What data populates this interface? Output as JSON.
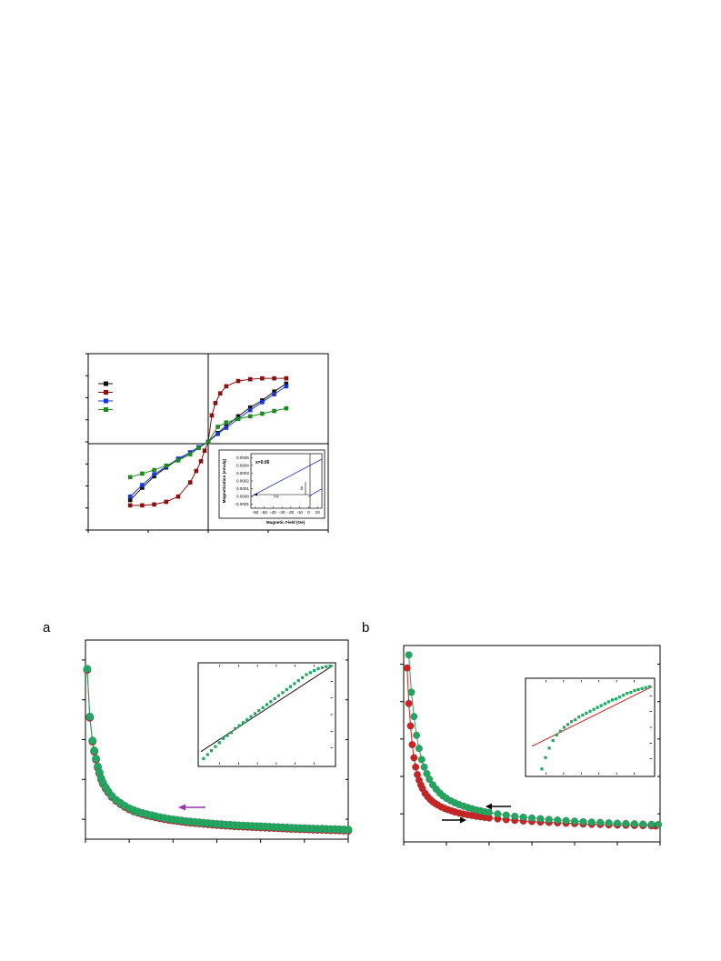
{
  "figure": {
    "panel_a_letter": "a",
    "panel_b_letter": "b"
  },
  "colors": {
    "black": "#111111",
    "dark_red": "#8b1010",
    "blue": "#1a35e0",
    "green": "#1e8a1e",
    "sea_green": "#20a860",
    "red": "#cc2222",
    "purple": "#9933aa",
    "inset_line": "#2233cc"
  },
  "chart_data": [
    {
      "id": "hysteresis",
      "type": "line",
      "series": [
        {
          "key": "black",
          "color": "#111111",
          "x": [
            -0.65,
            -0.55,
            -0.45,
            -0.35,
            -0.25,
            -0.15,
            -0.08,
            0,
            0.08,
            0.15,
            0.25,
            0.35,
            0.45,
            0.55,
            0.65
          ],
          "y": [
            -0.66,
            -0.52,
            -0.39,
            -0.29,
            -0.2,
            -0.12,
            -0.06,
            0,
            0.1,
            0.18,
            0.29,
            0.39,
            0.47,
            0.57,
            0.66
          ]
        },
        {
          "key": "dark_red",
          "color": "#8b1010",
          "x": [
            -0.65,
            -0.55,
            -0.45,
            -0.35,
            -0.25,
            -0.15,
            -0.1,
            -0.06,
            -0.03,
            0,
            0.03,
            0.06,
            0.1,
            0.15,
            0.25,
            0.35,
            0.45,
            0.55,
            0.65
          ],
          "y": [
            -0.72,
            -0.72,
            -0.71,
            -0.68,
            -0.62,
            -0.46,
            -0.33,
            -0.22,
            -0.1,
            0,
            0.3,
            0.44,
            0.55,
            0.63,
            0.69,
            0.71,
            0.72,
            0.72,
            0.72
          ]
        },
        {
          "key": "blue",
          "color": "#1a35e0",
          "x": [
            -0.65,
            -0.55,
            -0.45,
            -0.35,
            -0.25,
            -0.15,
            -0.08,
            0,
            0.08,
            0.15,
            0.25,
            0.35,
            0.45,
            0.55,
            0.65
          ],
          "y": [
            -0.62,
            -0.49,
            -0.37,
            -0.28,
            -0.19,
            -0.12,
            -0.06,
            0,
            0.09,
            0.16,
            0.26,
            0.36,
            0.45,
            0.54,
            0.63
          ]
        },
        {
          "key": "green",
          "color": "#1e8a1e",
          "x": [
            -0.65,
            -0.55,
            -0.45,
            -0.35,
            -0.25,
            -0.15,
            -0.08,
            0,
            0.08,
            0.15,
            0.25,
            0.35,
            0.45,
            0.55,
            0.65
          ],
          "y": [
            -0.4,
            -0.36,
            -0.32,
            -0.27,
            -0.21,
            -0.14,
            -0.07,
            0,
            0.17,
            0.22,
            0.26,
            0.29,
            0.32,
            0.35,
            0.38
          ]
        }
      ],
      "inset": {
        "annotation": "x=0.06",
        "ylabel": "Magnetization (emu/g)",
        "xlabel": "Magnetic Field (Oe)",
        "y_ticks": [
          "0.0005",
          "0.0004",
          "0.0003",
          "0.0002",
          "0.0001",
          "0.0000",
          "-0.0001"
        ],
        "x_ticks": [
          "-60",
          "-50",
          "-40",
          "-30",
          "-20",
          "-10",
          "0",
          "10"
        ],
        "hc_label": "Hc",
        "mr_label": "Mr",
        "xlim": [
          -65,
          15
        ],
        "ylim": [
          -0.00015,
          0.00055
        ],
        "lines": [
          {
            "x": [
              -65,
              15
            ],
            "y": [
              0.0,
              0.00048
            ]
          },
          {
            "x": [
              0,
              15
            ],
            "y": [
              0.0,
              0.0001
            ]
          }
        ]
      }
    },
    {
      "id": "panel_a",
      "type": "scatter",
      "series": [
        {
          "key": "red",
          "color": "#cc2222",
          "x": [
            2,
            5,
            8,
            10,
            12,
            14,
            16,
            18,
            20,
            23,
            26,
            30,
            35,
            40,
            45,
            50,
            55,
            60,
            65,
            70,
            75,
            80,
            85,
            90,
            95,
            100,
            105,
            110,
            115,
            120,
            125,
            130,
            135,
            140,
            145,
            150,
            155,
            160,
            165,
            170,
            175,
            180,
            185,
            190,
            195,
            200,
            205,
            210,
            215,
            220,
            225,
            230,
            235,
            240,
            245,
            250,
            255,
            260,
            265,
            270,
            275,
            280,
            285,
            290,
            295,
            300
          ],
          "y": [
            8.5,
            6.1,
            4.9,
            4.4,
            4.0,
            3.6,
            3.3,
            3.0,
            2.78,
            2.55,
            2.35,
            2.12,
            1.92,
            1.76,
            1.62,
            1.5,
            1.41,
            1.33,
            1.26,
            1.2,
            1.15,
            1.1,
            1.05,
            1.01,
            0.97,
            0.94,
            0.91,
            0.88,
            0.85,
            0.83,
            0.81,
            0.79,
            0.77,
            0.75,
            0.73,
            0.71,
            0.7,
            0.68,
            0.67,
            0.65,
            0.64,
            0.63,
            0.62,
            0.61,
            0.6,
            0.59,
            0.58,
            0.57,
            0.56,
            0.55,
            0.54,
            0.53,
            0.52,
            0.51,
            0.5,
            0.5,
            0.49,
            0.48,
            0.47,
            0.47,
            0.46,
            0.45,
            0.45,
            0.44,
            0.43,
            0.43
          ]
        },
        {
          "key": "green",
          "color": "#20a860",
          "x": [
            2,
            5,
            8,
            10,
            12,
            14,
            16,
            18,
            20,
            23,
            26,
            30,
            35,
            40,
            45,
            50,
            55,
            60,
            65,
            70,
            75,
            80,
            85,
            90,
            95,
            100,
            105,
            110,
            115,
            120,
            125,
            130,
            135,
            140,
            145,
            150,
            155,
            160,
            165,
            170,
            175,
            180,
            185,
            190,
            195,
            200,
            205,
            210,
            215,
            220,
            225,
            230,
            235,
            240,
            245,
            250,
            255,
            260,
            265,
            270,
            275,
            280,
            285,
            290,
            295,
            300
          ],
          "y": [
            8.55,
            6.15,
            4.95,
            4.45,
            4.05,
            3.65,
            3.35,
            3.05,
            2.83,
            2.6,
            2.4,
            2.17,
            1.97,
            1.81,
            1.67,
            1.55,
            1.46,
            1.38,
            1.31,
            1.25,
            1.2,
            1.15,
            1.1,
            1.06,
            1.02,
            0.99,
            0.96,
            0.93,
            0.9,
            0.88,
            0.86,
            0.84,
            0.82,
            0.8,
            0.78,
            0.76,
            0.75,
            0.73,
            0.72,
            0.7,
            0.69,
            0.68,
            0.67,
            0.66,
            0.65,
            0.64,
            0.63,
            0.62,
            0.61,
            0.6,
            0.59,
            0.58,
            0.57,
            0.56,
            0.55,
            0.55,
            0.54,
            0.53,
            0.52,
            0.52,
            0.51,
            0.5,
            0.5,
            0.49,
            0.48,
            0.48
          ]
        }
      ],
      "xlim": [
        0,
        300
      ],
      "ylim": [
        0,
        10
      ],
      "inset": {
        "xlim": [
          0,
          1
        ],
        "ylim": [
          0,
          1
        ],
        "points": [
          [
            0.02,
            0.06
          ],
          [
            0.05,
            0.1
          ],
          [
            0.08,
            0.14
          ],
          [
            0.11,
            0.18
          ],
          [
            0.14,
            0.22
          ],
          [
            0.17,
            0.26
          ],
          [
            0.2,
            0.29
          ],
          [
            0.23,
            0.32
          ],
          [
            0.26,
            0.36
          ],
          [
            0.29,
            0.39
          ],
          [
            0.32,
            0.42
          ],
          [
            0.35,
            0.45
          ],
          [
            0.38,
            0.48
          ],
          [
            0.41,
            0.51
          ],
          [
            0.44,
            0.54
          ],
          [
            0.47,
            0.57
          ],
          [
            0.5,
            0.6
          ],
          [
            0.53,
            0.63
          ],
          [
            0.56,
            0.66
          ],
          [
            0.59,
            0.69
          ],
          [
            0.62,
            0.72
          ],
          [
            0.65,
            0.75
          ],
          [
            0.68,
            0.78
          ],
          [
            0.71,
            0.81
          ],
          [
            0.74,
            0.84
          ],
          [
            0.77,
            0.87
          ],
          [
            0.8,
            0.9
          ],
          [
            0.83,
            0.92
          ],
          [
            0.86,
            0.94
          ],
          [
            0.89,
            0.96
          ],
          [
            0.92,
            0.97
          ],
          [
            0.95,
            0.98
          ],
          [
            0.98,
            0.985
          ]
        ],
        "fit": [
          [
            0.0,
            0.13
          ],
          [
            1.0,
            0.99
          ]
        ]
      }
    },
    {
      "id": "panel_b",
      "type": "scatter",
      "series": [
        {
          "key": "red",
          "color": "#cc2222",
          "x": [
            4,
            6,
            8,
            10,
            12,
            14,
            16,
            18,
            20,
            22,
            25,
            28,
            31,
            34,
            37,
            40,
            44,
            48,
            52,
            56,
            60,
            65,
            70,
            75,
            80,
            85,
            90,
            95,
            100,
            110,
            120,
            130,
            140,
            150,
            160,
            170,
            180,
            190,
            200,
            210,
            220,
            230,
            240,
            250,
            260,
            270,
            280,
            290,
            295
          ],
          "y": [
            9.3,
            7.4,
            6.2,
            5.2,
            4.5,
            4.0,
            3.6,
            3.3,
            3.05,
            2.85,
            2.6,
            2.42,
            2.27,
            2.15,
            2.05,
            1.97,
            1.87,
            1.79,
            1.72,
            1.66,
            1.6,
            1.54,
            1.49,
            1.45,
            1.41,
            1.37,
            1.34,
            1.31,
            1.28,
            1.23,
            1.19,
            1.15,
            1.12,
            1.09,
            1.06,
            1.04,
            1.02,
            1.0,
            0.98,
            0.96,
            0.94,
            0.93,
            0.91,
            0.9,
            0.89,
            0.88,
            0.87,
            0.86,
            0.85
          ]
        },
        {
          "key": "green",
          "color": "#20a860",
          "x": [
            6,
            9,
            12,
            15,
            18,
            21,
            24,
            27,
            30,
            34,
            38,
            42,
            46,
            50,
            55,
            60,
            65,
            70,
            75,
            80,
            85,
            90,
            95,
            100,
            110,
            120,
            130,
            140,
            150,
            160,
            170,
            180,
            190,
            200,
            210,
            220,
            230,
            240,
            250,
            260,
            270,
            280,
            290,
            298
          ],
          "y": [
            10.0,
            8.0,
            6.7,
            5.7,
            5.0,
            4.4,
            4.0,
            3.65,
            3.35,
            3.05,
            2.82,
            2.62,
            2.46,
            2.33,
            2.2,
            2.09,
            1.99,
            1.91,
            1.84,
            1.77,
            1.71,
            1.66,
            1.61,
            1.57,
            1.5,
            1.43,
            1.37,
            1.32,
            1.28,
            1.24,
            1.2,
            1.17,
            1.14,
            1.11,
            1.08,
            1.06,
            1.04,
            1.02,
            1.0,
            0.98,
            0.97,
            0.95,
            0.94,
            0.93
          ]
        }
      ],
      "xlim": [
        0,
        300
      ],
      "ylim": [
        0,
        10.5
      ],
      "inset": {
        "xlim": [
          0,
          1
        ],
        "ylim": [
          0,
          1
        ],
        "points": [
          [
            0.11,
            0.06
          ],
          [
            0.14,
            0.18
          ],
          [
            0.17,
            0.28
          ],
          [
            0.2,
            0.36
          ],
          [
            0.23,
            0.42
          ],
          [
            0.26,
            0.46
          ],
          [
            0.29,
            0.5
          ],
          [
            0.32,
            0.53
          ],
          [
            0.35,
            0.56
          ],
          [
            0.38,
            0.58
          ],
          [
            0.41,
            0.61
          ],
          [
            0.44,
            0.63
          ],
          [
            0.47,
            0.65
          ],
          [
            0.5,
            0.67
          ],
          [
            0.53,
            0.69
          ],
          [
            0.56,
            0.71
          ],
          [
            0.59,
            0.73
          ],
          [
            0.62,
            0.75
          ],
          [
            0.65,
            0.77
          ],
          [
            0.68,
            0.79
          ],
          [
            0.71,
            0.8
          ],
          [
            0.74,
            0.82
          ],
          [
            0.77,
            0.84
          ],
          [
            0.8,
            0.86
          ],
          [
            0.83,
            0.87
          ],
          [
            0.86,
            0.89
          ],
          [
            0.89,
            0.9
          ],
          [
            0.92,
            0.91
          ],
          [
            0.95,
            0.92
          ],
          [
            0.98,
            0.93
          ]
        ],
        "fit": [
          [
            0.03,
            0.3
          ],
          [
            1.0,
            0.93
          ]
        ]
      }
    }
  ]
}
